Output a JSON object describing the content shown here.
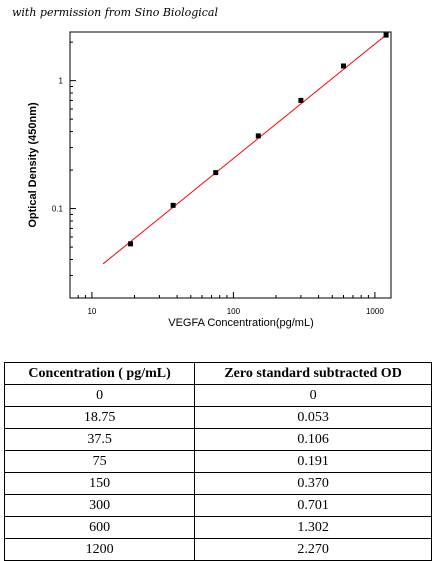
{
  "credit": "with permission from Sino Biological",
  "chart_data": {
    "type": "scatter",
    "xlabel": "VEGFA  Concentration(pg/mL)",
    "ylabel": "Optical Density (450nm)",
    "x_scale": "log",
    "y_scale": "log",
    "xlim": [
      7,
      1300
    ],
    "ylim": [
      0.02,
      2.4
    ],
    "x_ticks": [
      {
        "value": 10,
        "label": "10"
      },
      {
        "value": 100,
        "label": "100"
      },
      {
        "value": 1000,
        "label": "1000"
      }
    ],
    "y_ticks": [
      {
        "value": 0.1,
        "label": "0.1"
      },
      {
        "value": 1,
        "label": "1"
      }
    ],
    "series": [
      {
        "x": [
          18.75,
          37.5,
          75,
          150,
          300,
          600,
          1200
        ],
        "y": [
          0.053,
          0.106,
          0.191,
          0.37,
          0.701,
          1.302,
          2.27
        ],
        "marker_color": "#000000"
      }
    ],
    "fit_line": {
      "x_start": 12,
      "x_end": 1250,
      "y_start": 0.037,
      "y_end": 2.36,
      "color": "#ff0000"
    },
    "grid": false
  },
  "table": {
    "headers": [
      "Concentration ( pg/mL)",
      "Zero standard subtracted OD"
    ],
    "rows": [
      [
        "0",
        "0"
      ],
      [
        "18.75",
        "0.053"
      ],
      [
        "37.5",
        "0.106"
      ],
      [
        "75",
        "0.191"
      ],
      [
        "150",
        "0.370"
      ],
      [
        "300",
        "0.701"
      ],
      [
        "600",
        "1.302"
      ],
      [
        "1200",
        "2.270"
      ]
    ]
  }
}
